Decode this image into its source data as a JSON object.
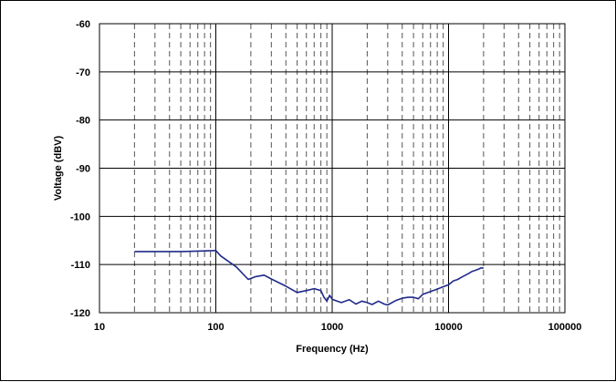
{
  "chart_data": {
    "type": "line",
    "title": "",
    "xlabel": "Frequency (Hz)",
    "ylabel": "Voltage (dBV)",
    "x_scale": "log",
    "xlim": [
      10,
      100000
    ],
    "ylim": [
      -120,
      -60
    ],
    "x_ticks": [
      10,
      100,
      1000,
      10000,
      100000
    ],
    "x_tick_labels": [
      "10",
      "100",
      "1000",
      "10000",
      "100000"
    ],
    "y_ticks": [
      -60,
      -70,
      -80,
      -90,
      -100,
      -110,
      -120
    ],
    "y_tick_labels": [
      "-60",
      "-70",
      "-80",
      "-90",
      "-100",
      "-110",
      "-120"
    ],
    "grid": {
      "major": "solid",
      "minor_x": "dashed"
    },
    "line_color": "#1f2a8a",
    "series": [
      {
        "x": [
          20,
          30,
          50,
          70,
          100,
          110,
          150,
          190,
          220,
          260,
          300,
          400,
          500,
          600,
          700,
          800,
          850,
          900,
          950,
          1000,
          1100,
          1200,
          1400,
          1600,
          1800,
          2000,
          2200,
          2500,
          2800,
          3000,
          3500,
          4000,
          4500,
          5000,
          5500,
          6000,
          7000,
          8000,
          9000,
          10000,
          11000,
          12000,
          13000,
          14000,
          15000,
          16000,
          17000,
          18000,
          19000,
          20000
        ],
        "y": [
          -107.3,
          -107.3,
          -107.3,
          -107.2,
          -107.1,
          -108.2,
          -110.5,
          -113.1,
          -112.5,
          -112.2,
          -113,
          -114.5,
          -115.8,
          -115.4,
          -115.0,
          -115.4,
          -116.8,
          -117.6,
          -116.4,
          -117.2,
          -117.6,
          -117.9,
          -117.3,
          -118.2,
          -117.6,
          -117.9,
          -118.3,
          -117.6,
          -118.2,
          -118.4,
          -117.5,
          -117.0,
          -116.8,
          -116.8,
          -117.1,
          -116.2,
          -115.6,
          -115.1,
          -114.6,
          -114.2,
          -113.4,
          -113.1,
          -112.6,
          -112.2,
          -111.8,
          -111.4,
          -111.2,
          -111.0,
          -110.7,
          -110.7
        ]
      }
    ]
  }
}
